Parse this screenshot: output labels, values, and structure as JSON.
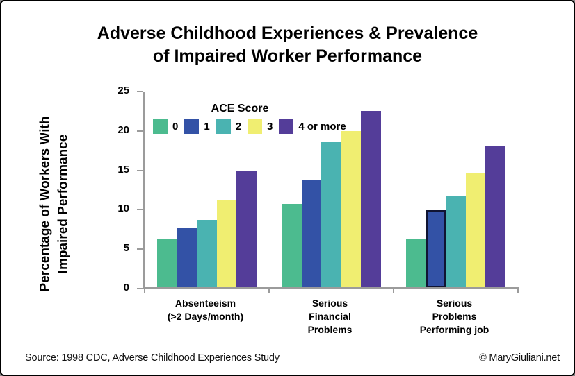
{
  "title": {
    "text": "Adverse Childhood Experiences & Prevalence\nof Impaired Worker Performance"
  },
  "y_axis": {
    "label": "Percentage of Workers With\nImpaired Performance"
  },
  "footer": {
    "source": "Source: 1998 CDC, Adverse Childhood Experiences Study",
    "copyright": "© MaryGiuliani.net"
  },
  "chart_data": {
    "type": "bar",
    "title": "Adverse Childhood Experiences & Prevalence of Impaired Worker Performance",
    "ylabel": "Percentage of Workers With Impaired Performance",
    "xlabel": "",
    "legend_title": "ACE Score",
    "legend_position": "top-left-inside",
    "grid": false,
    "ylim": [
      0,
      25
    ],
    "yticks": [
      0,
      5,
      10,
      15,
      20,
      25
    ],
    "categories": [
      "Absenteeism\n(>2 Days/month)",
      "Serious\nFinancial\nProblems",
      "Serious\nProblems\nPerforming job"
    ],
    "series": [
      {
        "name": "0",
        "color": "#4CBB8F",
        "values": [
          6.1,
          10.6,
          6.2
        ]
      },
      {
        "name": "1",
        "color": "#3352A6",
        "values": [
          7.6,
          13.6,
          9.8
        ]
      },
      {
        "name": "2",
        "color": "#4AB3B1",
        "values": [
          8.5,
          18.5,
          11.6
        ]
      },
      {
        "name": "3",
        "color": "#F0EE71",
        "values": [
          11.1,
          19.8,
          14.4
        ]
      },
      {
        "name": "4 or more",
        "color": "#543D99",
        "values": [
          14.8,
          22.4,
          18.0
        ]
      }
    ],
    "outlined_point": {
      "category_index": 2,
      "series_name": "1",
      "outline_color": "#101432"
    },
    "axis_color": "#9b9b9b"
  }
}
